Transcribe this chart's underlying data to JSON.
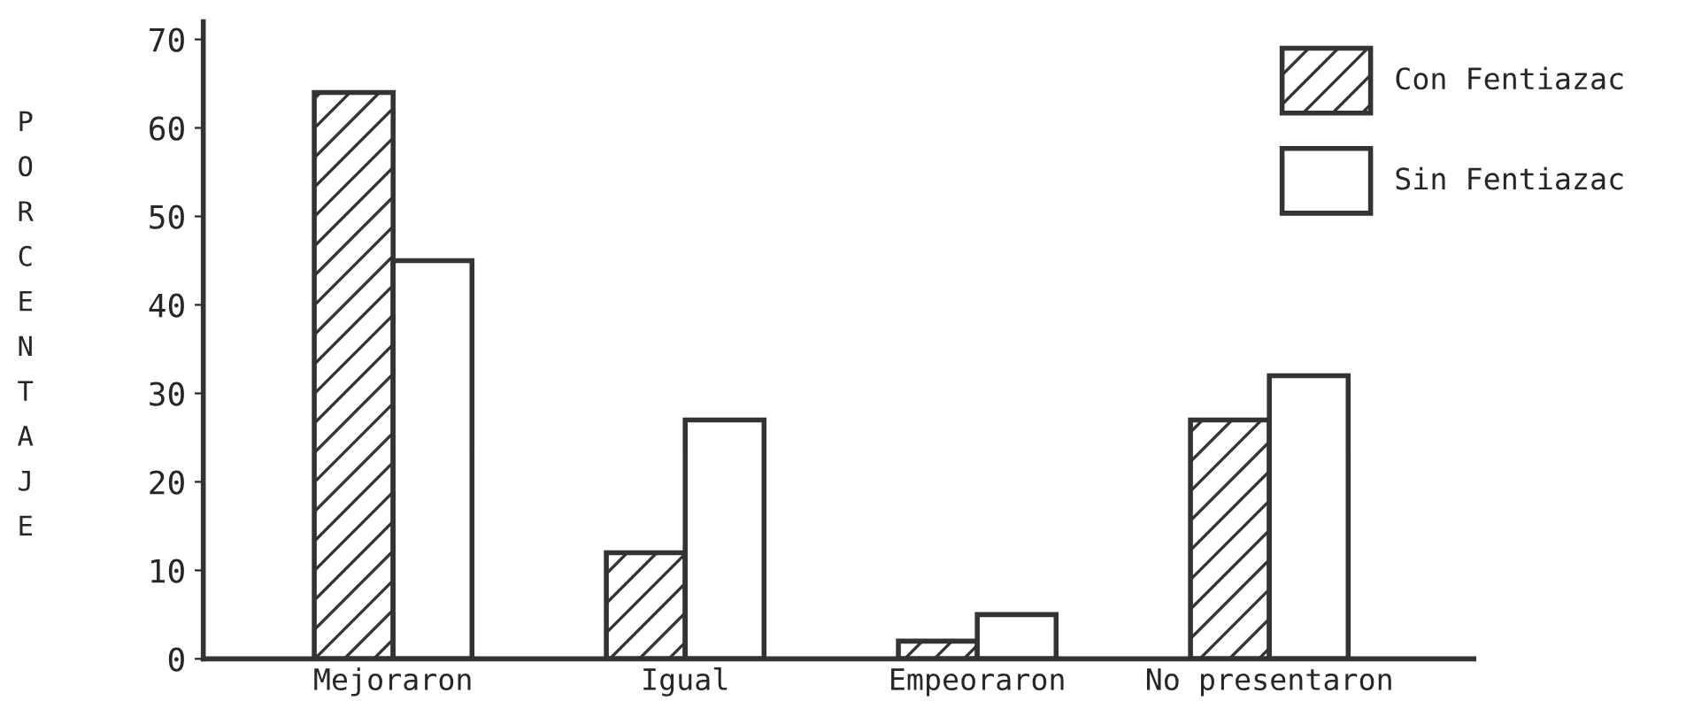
{
  "chart_data": {
    "type": "bar",
    "ylabel": "PORCENTAJE",
    "categories": [
      "Mejoraron",
      "Igual",
      "Empeoraron",
      "No presentaron"
    ],
    "series": [
      {
        "name": "Con Fentiazac",
        "color": "#333333",
        "values": [
          64,
          12,
          2,
          27
        ]
      },
      {
        "name": "Sin Fentiazac",
        "color": "#ffffff",
        "values": [
          45,
          27,
          5,
          32
        ]
      }
    ],
    "ylim": [
      0,
      72
    ],
    "yticks": [
      0,
      10,
      20,
      30,
      40,
      50,
      60,
      70
    ],
    "grid": false,
    "legend": "top right"
  }
}
